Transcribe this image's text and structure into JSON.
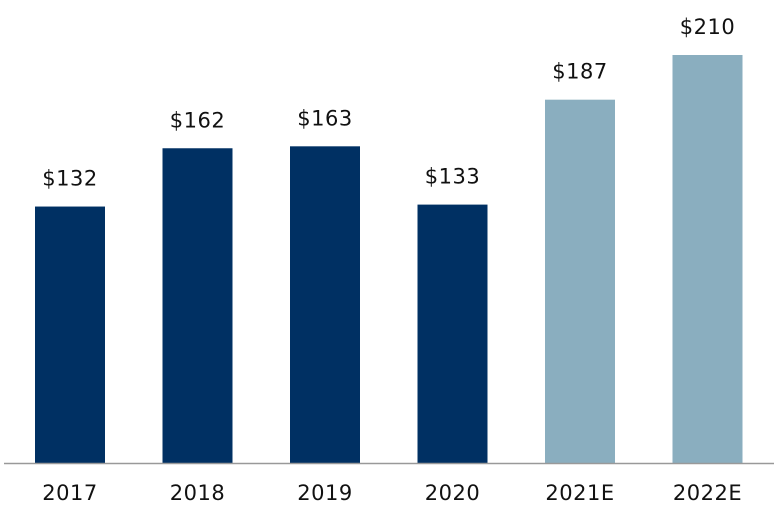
{
  "chart_data": {
    "type": "bar",
    "title": "",
    "xlabel": "",
    "ylabel": "",
    "ylim": [
      0,
      210
    ],
    "value_prefix": "$",
    "categories": [
      "2017",
      "2018",
      "2019",
      "2020",
      "2021E",
      "2022E"
    ],
    "values": [
      132,
      162,
      163,
      133,
      187,
      210
    ],
    "value_labels": [
      "$132",
      "$162",
      "$163",
      "$133",
      "$187",
      "$210"
    ],
    "bar_kinds": [
      "actual",
      "actual",
      "actual",
      "actual",
      "estimate",
      "estimate"
    ],
    "colors": {
      "actual": "#003063",
      "estimate": "#8aaebf",
      "axis": "#999999"
    }
  }
}
